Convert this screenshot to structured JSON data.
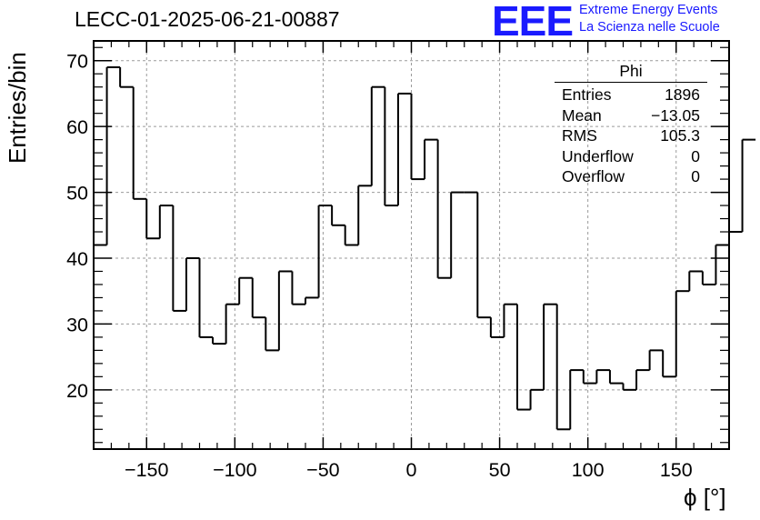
{
  "header": {
    "title": "LECC-01-2025-06-21-00887",
    "logo": "EEE",
    "logo_line1": "Extreme Energy Events",
    "logo_line2": "La Scienza nelle Scuole",
    "logo_color": "#1a1aff"
  },
  "stats_box": {
    "title": "Phi",
    "rows": [
      {
        "label": "Entries",
        "value": "1896"
      },
      {
        "label": "Mean",
        "value": "−13.05"
      },
      {
        "label": "RMS",
        "value": "105.3"
      },
      {
        "label": "Underflow",
        "value": "0"
      },
      {
        "label": "Overflow",
        "value": "0"
      }
    ]
  },
  "chart_data": {
    "type": "histogram",
    "title": "LECC-01-2025-06-21-00887",
    "xlabel": "ϕ [°]",
    "ylabel": "Entries/bin",
    "xlim": [
      -180,
      180
    ],
    "ylim": [
      11,
      73
    ],
    "grid": true,
    "bin_width": 7.5,
    "bin_edges_start": -180,
    "values": [
      42,
      69,
      66,
      49,
      43,
      48,
      32,
      40,
      28,
      27,
      33,
      37,
      31,
      26,
      38,
      33,
      34,
      48,
      45,
      42,
      51,
      66,
      48,
      65,
      52,
      58,
      37,
      50,
      50,
      31,
      28,
      33,
      17,
      20,
      33,
      14,
      23,
      21,
      23,
      21,
      20,
      23,
      26,
      22,
      35,
      38,
      36,
      42,
      44,
      58
    ],
    "x_ticks": [
      {
        "value": -150,
        "label": "−150"
      },
      {
        "value": -100,
        "label": "−100"
      },
      {
        "value": -50,
        "label": "−50"
      },
      {
        "value": 0,
        "label": "0"
      },
      {
        "value": 50,
        "label": "50"
      },
      {
        "value": 100,
        "label": "100"
      },
      {
        "value": 150,
        "label": "150"
      }
    ],
    "y_ticks": [
      {
        "value": 20,
        "label": "20"
      },
      {
        "value": 30,
        "label": "30"
      },
      {
        "value": 40,
        "label": "40"
      },
      {
        "value": 50,
        "label": "50"
      },
      {
        "value": 60,
        "label": "60"
      },
      {
        "value": 70,
        "label": "70"
      }
    ],
    "line_color": "#000000",
    "grid_color": "#9a9a9a"
  }
}
